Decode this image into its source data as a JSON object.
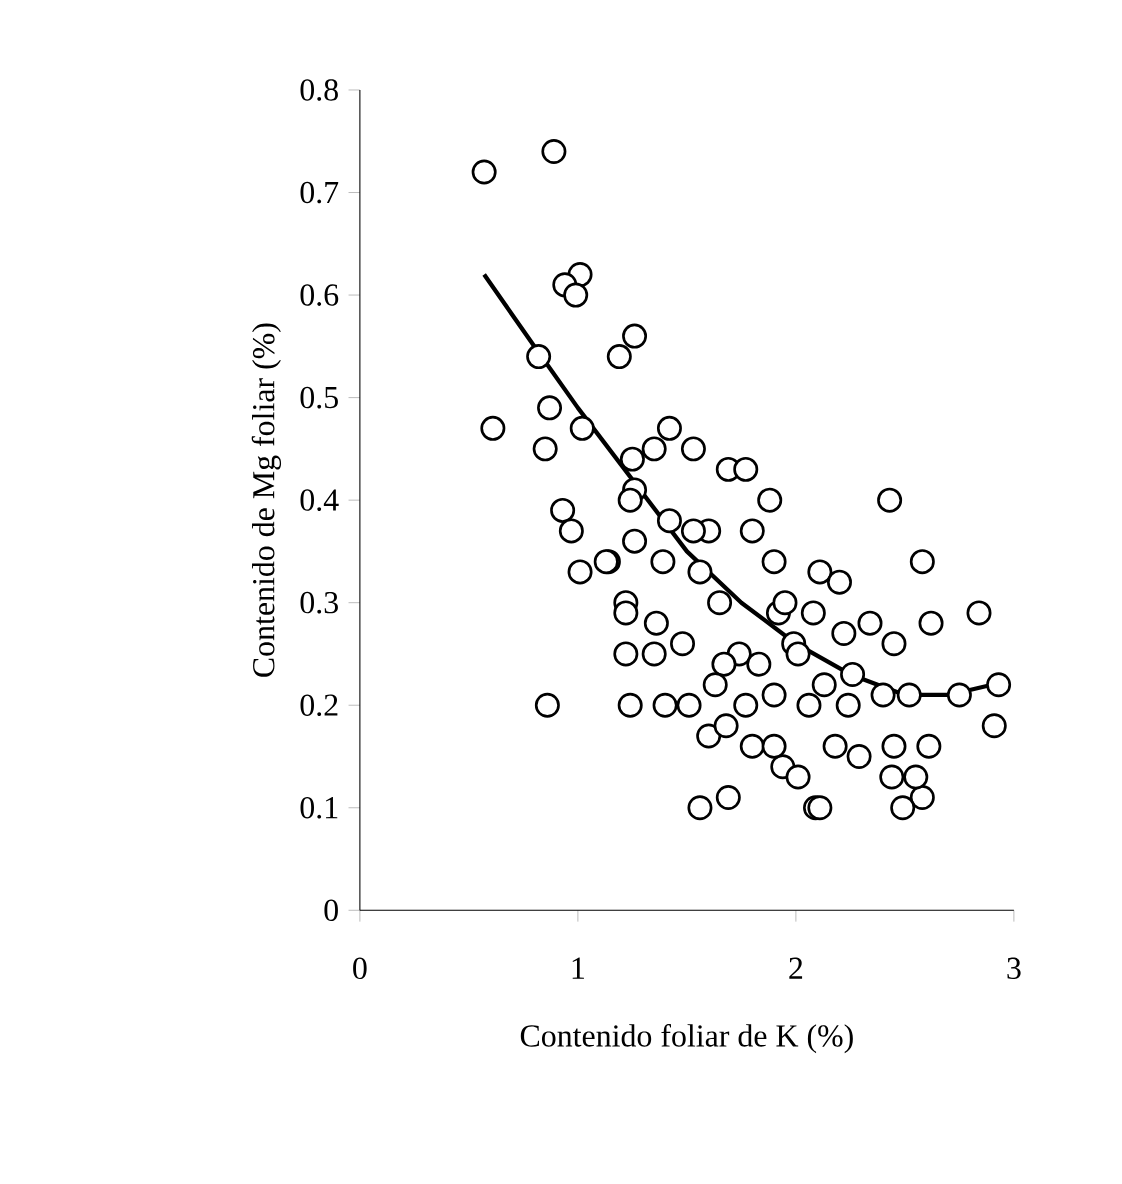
{
  "chart_data": {
    "type": "scatter",
    "xlabel": "Contenido foliar de K (%)",
    "ylabel": "Contenido de Mg foliar (%)",
    "xlim": [
      0,
      3
    ],
    "xticks": [
      0,
      1,
      2,
      3
    ],
    "ylim": [
      0,
      0.8
    ],
    "yticks": [
      0,
      0.1,
      0.2,
      0.3,
      0.4,
      0.5,
      0.6,
      0.7,
      0.8
    ],
    "grid": false,
    "series": [
      {
        "color": "#000000",
        "marker": "circle",
        "x": [
          0.57,
          0.89,
          1.01,
          0.94,
          0.99,
          1.19,
          1.26,
          0.82,
          0.61,
          0.87,
          1.02,
          0.85,
          0.93,
          0.97,
          1.01,
          1.14,
          1.22,
          0.86,
          1.42,
          1.35,
          1.53,
          1.25,
          1.26,
          1.24,
          1.42,
          1.6,
          1.69,
          1.77,
          1.26,
          1.39,
          1.13,
          1.88,
          1.53,
          1.8,
          1.56,
          1.9,
          2.11,
          1.22,
          1.36,
          1.65,
          1.92,
          1.22,
          1.35,
          1.48,
          1.74,
          1.99,
          1.24,
          1.4,
          1.51,
          1.77,
          1.9,
          2.06,
          1.6,
          1.8,
          1.94,
          1.56,
          1.69,
          2.09,
          1.67,
          1.83,
          1.63,
          1.68,
          2.43,
          2.58,
          2.84,
          2.62,
          2.45,
          2.34,
          2.2,
          1.95,
          2.08,
          2.22,
          2.01,
          2.93,
          2.75,
          2.91,
          2.52,
          2.4,
          2.26,
          2.24,
          2.61,
          2.45,
          2.29,
          1.9,
          2.01,
          2.44,
          2.58,
          2.55,
          2.11,
          2.49,
          2.18,
          2.13
        ],
        "values": [
          0.72,
          0.74,
          0.62,
          0.61,
          0.6,
          0.54,
          0.56,
          0.54,
          0.47,
          0.49,
          0.47,
          0.45,
          0.39,
          0.37,
          0.33,
          0.34,
          0.3,
          0.2,
          0.47,
          0.45,
          0.45,
          0.44,
          0.41,
          0.4,
          0.38,
          0.37,
          0.43,
          0.43,
          0.36,
          0.34,
          0.34,
          0.4,
          0.37,
          0.37,
          0.33,
          0.34,
          0.33,
          0.29,
          0.28,
          0.3,
          0.29,
          0.25,
          0.25,
          0.26,
          0.25,
          0.26,
          0.2,
          0.2,
          0.2,
          0.2,
          0.21,
          0.2,
          0.17,
          0.16,
          0.14,
          0.1,
          0.11,
          0.1,
          0.24,
          0.24,
          0.22,
          0.18,
          0.4,
          0.34,
          0.29,
          0.28,
          0.26,
          0.28,
          0.32,
          0.3,
          0.29,
          0.27,
          0.25,
          0.22,
          0.21,
          0.18,
          0.21,
          0.21,
          0.23,
          0.2,
          0.16,
          0.16,
          0.15,
          0.16,
          0.13,
          0.13,
          0.11,
          0.13,
          0.1,
          0.1,
          0.16,
          0.22
        ]
      },
      {
        "type": "line",
        "color": "#000000",
        "marker": "none",
        "line_style": "solid",
        "x": [
          0.57,
          0.8,
          1.0,
          1.25,
          1.5,
          1.75,
          2.0,
          2.25,
          2.5,
          2.7,
          2.9
        ],
        "values": [
          0.62,
          0.55,
          0.49,
          0.42,
          0.35,
          0.3,
          0.26,
          0.23,
          0.21,
          0.21,
          0.22
        ]
      }
    ]
  }
}
